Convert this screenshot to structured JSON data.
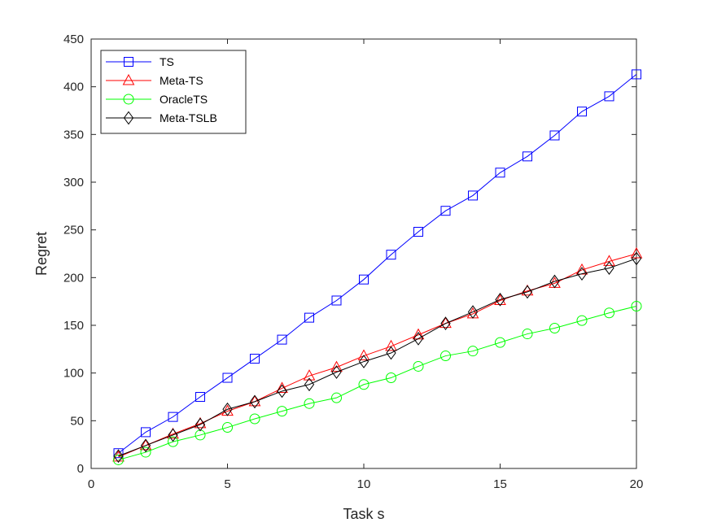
{
  "chart_data": {
    "type": "line",
    "xlabel": "Task s",
    "ylabel": "Regret",
    "xlim": [
      0,
      20
    ],
    "ylim": [
      0,
      450
    ],
    "xticks": [
      0,
      5,
      10,
      15,
      20
    ],
    "yticks": [
      0,
      50,
      100,
      150,
      200,
      250,
      300,
      350,
      400,
      450
    ],
    "grid": false,
    "legend_position": "top-left",
    "x": [
      1,
      2,
      3,
      4,
      5,
      6,
      7,
      8,
      9,
      10,
      11,
      12,
      13,
      14,
      15,
      16,
      17,
      18,
      19,
      20
    ],
    "series": [
      {
        "name": "TS",
        "color": "#0000ff",
        "marker": "square",
        "values": [
          16,
          38,
          54,
          75,
          95,
          115,
          135,
          158,
          176,
          198,
          224,
          248,
          270,
          286,
          310,
          327,
          349,
          374,
          390,
          413
        ]
      },
      {
        "name": "Meta-TS",
        "color": "#ff0000",
        "marker": "triangle",
        "values": [
          12,
          24,
          36,
          47,
          60,
          70,
          84,
          97,
          106,
          118,
          128,
          140,
          152,
          162,
          176,
          186,
          194,
          208,
          217,
          225
        ]
      },
      {
        "name": "OracleTS",
        "color": "#00ff00",
        "marker": "circle",
        "values": [
          9,
          17,
          28,
          35,
          43,
          52,
          60,
          68,
          74,
          88,
          95,
          107,
          118,
          123,
          132,
          141,
          147,
          155,
          163,
          170
        ]
      },
      {
        "name": "Meta-TSLB",
        "color": "#000000",
        "marker": "diamond",
        "values": [
          13,
          24,
          35,
          46,
          62,
          70,
          81,
          88,
          101,
          112,
          121,
          136,
          152,
          164,
          177,
          185,
          196,
          204,
          210,
          220
        ]
      }
    ]
  }
}
